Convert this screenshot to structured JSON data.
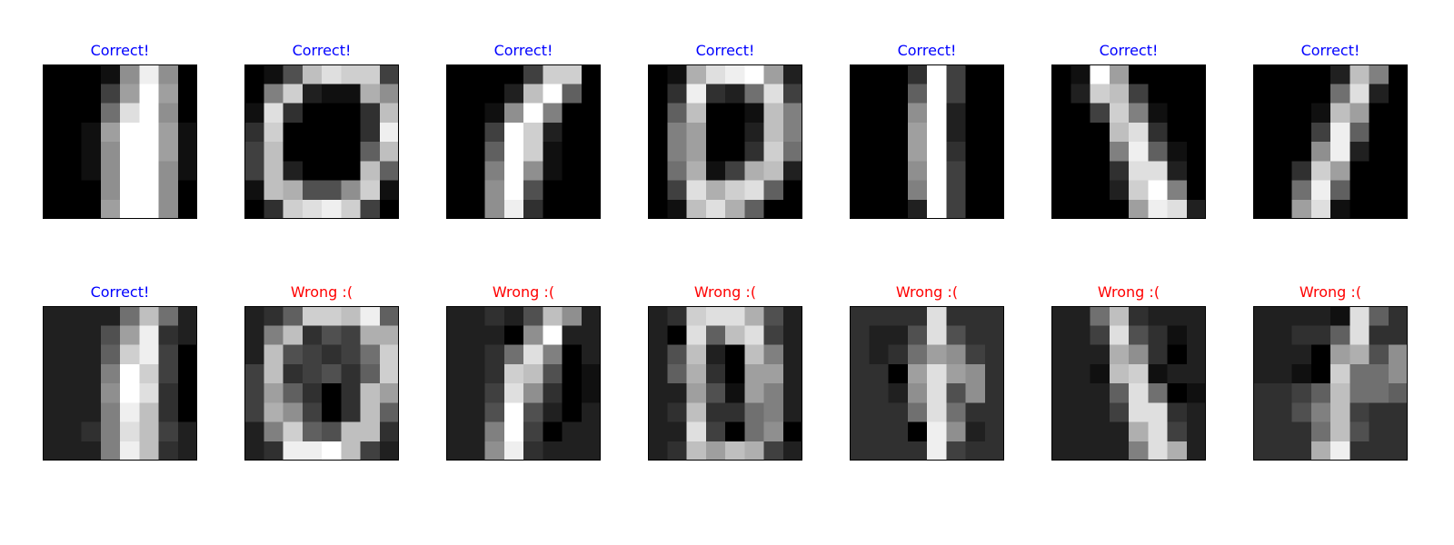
{
  "chart_data": {
    "type": "heatmap",
    "colormap": "gray",
    "grid_rows": 2,
    "grid_cols": 7,
    "image_size": [
      8,
      8
    ],
    "status_colors": {
      "correct": "#0000ff",
      "wrong": "#ff0000"
    },
    "panels": [
      {
        "title": "Correct!",
        "status": "correct",
        "pixels": [
          [
            0,
            0,
            0,
            1,
            9,
            15,
            9,
            0
          ],
          [
            0,
            0,
            0,
            4,
            10,
            16,
            10,
            0
          ],
          [
            0,
            0,
            0,
            7,
            14,
            16,
            9,
            0
          ],
          [
            0,
            0,
            1,
            10,
            16,
            16,
            10,
            1
          ],
          [
            0,
            0,
            1,
            9,
            16,
            16,
            10,
            1
          ],
          [
            0,
            0,
            1,
            9,
            16,
            16,
            9,
            1
          ],
          [
            0,
            0,
            0,
            9,
            16,
            16,
            9,
            0
          ],
          [
            0,
            0,
            0,
            10,
            16,
            16,
            9,
            0
          ]
        ]
      },
      {
        "title": "Correct!",
        "status": "correct",
        "pixels": [
          [
            0,
            1,
            5,
            12,
            14,
            13,
            13,
            4
          ],
          [
            0,
            8,
            13,
            2,
            1,
            1,
            11,
            9
          ],
          [
            1,
            14,
            3,
            0,
            0,
            0,
            3,
            12
          ],
          [
            3,
            13,
            0,
            0,
            0,
            0,
            3,
            15
          ],
          [
            4,
            12,
            0,
            0,
            0,
            0,
            6,
            12
          ],
          [
            4,
            12,
            2,
            0,
            0,
            0,
            12,
            6
          ],
          [
            1,
            12,
            11,
            5,
            5,
            9,
            13,
            1
          ],
          [
            0,
            3,
            13,
            14,
            15,
            13,
            4,
            0
          ]
        ]
      },
      {
        "title": "Correct!",
        "status": "correct",
        "pixels": [
          [
            0,
            0,
            0,
            0,
            4,
            13,
            13,
            0
          ],
          [
            0,
            0,
            0,
            2,
            12,
            16,
            6,
            0
          ],
          [
            0,
            0,
            1,
            9,
            16,
            8,
            0,
            0
          ],
          [
            0,
            0,
            4,
            16,
            13,
            2,
            0,
            0
          ],
          [
            0,
            0,
            6,
            16,
            13,
            1,
            0,
            0
          ],
          [
            0,
            0,
            8,
            16,
            9,
            1,
            0,
            0
          ],
          [
            0,
            0,
            9,
            16,
            5,
            0,
            0,
            0
          ],
          [
            0,
            0,
            9,
            15,
            3,
            0,
            0,
            0
          ]
        ]
      },
      {
        "title": "Correct!",
        "status": "correct",
        "pixels": [
          [
            0,
            1,
            11,
            14,
            15,
            16,
            10,
            2
          ],
          [
            0,
            3,
            15,
            3,
            2,
            7,
            14,
            4
          ],
          [
            0,
            6,
            12,
            0,
            0,
            1,
            12,
            8
          ],
          [
            0,
            8,
            10,
            0,
            0,
            2,
            12,
            8
          ],
          [
            0,
            8,
            10,
            0,
            0,
            3,
            13,
            7
          ],
          [
            0,
            7,
            11,
            1,
            4,
            11,
            12,
            2
          ],
          [
            0,
            4,
            14,
            11,
            13,
            14,
            6,
            0
          ],
          [
            0,
            1,
            12,
            14,
            11,
            6,
            0,
            0
          ]
        ]
      },
      {
        "title": "Correct!",
        "status": "correct",
        "pixels": [
          [
            0,
            0,
            0,
            3,
            16,
            4,
            0,
            0
          ],
          [
            0,
            0,
            0,
            6,
            16,
            4,
            0,
            0
          ],
          [
            0,
            0,
            0,
            9,
            16,
            2,
            0,
            0
          ],
          [
            0,
            0,
            0,
            10,
            16,
            2,
            0,
            0
          ],
          [
            0,
            0,
            0,
            10,
            16,
            3,
            0,
            0
          ],
          [
            0,
            0,
            0,
            9,
            16,
            4,
            0,
            0
          ],
          [
            0,
            0,
            0,
            8,
            16,
            4,
            0,
            0
          ],
          [
            0,
            0,
            0,
            2,
            16,
            4,
            0,
            0
          ]
        ]
      },
      {
        "title": "Correct!",
        "status": "correct",
        "pixels": [
          [
            0,
            1,
            16,
            10,
            0,
            0,
            0,
            0
          ],
          [
            0,
            2,
            13,
            12,
            4,
            0,
            0,
            0
          ],
          [
            0,
            0,
            4,
            13,
            8,
            1,
            0,
            0
          ],
          [
            0,
            0,
            0,
            12,
            14,
            3,
            0,
            0
          ],
          [
            0,
            0,
            0,
            8,
            15,
            6,
            1,
            0
          ],
          [
            0,
            0,
            0,
            3,
            14,
            14,
            2,
            0
          ],
          [
            0,
            0,
            0,
            2,
            13,
            16,
            8,
            0
          ],
          [
            0,
            0,
            0,
            0,
            10,
            15,
            14,
            2
          ]
        ]
      },
      {
        "title": "Correct!",
        "status": "correct",
        "pixels": [
          [
            0,
            0,
            0,
            0,
            2,
            12,
            8,
            0
          ],
          [
            0,
            0,
            0,
            0,
            7,
            14,
            2,
            0
          ],
          [
            0,
            0,
            0,
            1,
            12,
            10,
            0,
            0
          ],
          [
            0,
            0,
            0,
            4,
            15,
            6,
            0,
            0
          ],
          [
            0,
            0,
            0,
            9,
            15,
            2,
            0,
            0
          ],
          [
            0,
            0,
            3,
            13,
            10,
            0,
            0,
            0
          ],
          [
            0,
            0,
            7,
            15,
            6,
            0,
            0,
            0
          ],
          [
            0,
            0,
            10,
            14,
            1,
            0,
            0,
            0
          ]
        ]
      },
      {
        "title": "Correct!",
        "status": "correct",
        "pixels": [
          [
            2,
            2,
            2,
            2,
            7,
            12,
            7,
            2
          ],
          [
            2,
            2,
            2,
            5,
            10,
            15,
            3,
            2
          ],
          [
            2,
            2,
            2,
            6,
            13,
            15,
            4,
            0
          ],
          [
            2,
            2,
            2,
            8,
            16,
            13,
            4,
            0
          ],
          [
            2,
            2,
            2,
            9,
            16,
            14,
            3,
            0
          ],
          [
            2,
            2,
            2,
            8,
            15,
            12,
            3,
            0
          ],
          [
            2,
            2,
            3,
            8,
            14,
            12,
            4,
            2
          ],
          [
            2,
            2,
            2,
            8,
            15,
            12,
            3,
            2
          ]
        ]
      },
      {
        "title": "Wrong :(",
        "status": "wrong",
        "pixels": [
          [
            2,
            3,
            6,
            13,
            13,
            12,
            15,
            6
          ],
          [
            2,
            8,
            12,
            3,
            5,
            4,
            11,
            11
          ],
          [
            2,
            12,
            5,
            4,
            3,
            4,
            7,
            13
          ],
          [
            4,
            12,
            3,
            4,
            5,
            3,
            6,
            13
          ],
          [
            4,
            10,
            6,
            3,
            0,
            3,
            12,
            10
          ],
          [
            4,
            11,
            9,
            4,
            0,
            3,
            12,
            6
          ],
          [
            2,
            8,
            13,
            6,
            5,
            12,
            12,
            3
          ],
          [
            2,
            3,
            15,
            15,
            16,
            12,
            4,
            2
          ]
        ]
      },
      {
        "title": "Wrong :(",
        "status": "wrong",
        "pixels": [
          [
            2,
            2,
            3,
            2,
            5,
            12,
            9,
            2
          ],
          [
            2,
            2,
            2,
            0,
            9,
            16,
            2,
            2
          ],
          [
            2,
            2,
            3,
            7,
            14,
            8,
            0,
            2
          ],
          [
            2,
            2,
            3,
            13,
            12,
            5,
            0,
            1
          ],
          [
            2,
            2,
            4,
            14,
            9,
            3,
            0,
            1
          ],
          [
            2,
            2,
            5,
            16,
            5,
            2,
            0,
            2
          ],
          [
            2,
            2,
            8,
            16,
            4,
            0,
            2,
            2
          ],
          [
            2,
            2,
            9,
            15,
            3,
            2,
            2,
            2
          ]
        ]
      },
      {
        "title": "Wrong :(",
        "status": "wrong",
        "pixels": [
          [
            2,
            3,
            13,
            14,
            14,
            11,
            5,
            2
          ],
          [
            2,
            0,
            14,
            6,
            12,
            14,
            4,
            2
          ],
          [
            2,
            5,
            12,
            2,
            0,
            12,
            8,
            2
          ],
          [
            2,
            6,
            11,
            3,
            0,
            10,
            10,
            2
          ],
          [
            2,
            2,
            10,
            5,
            1,
            10,
            8,
            2
          ],
          [
            2,
            3,
            12,
            3,
            3,
            7,
            8,
            2
          ],
          [
            2,
            2,
            14,
            4,
            0,
            7,
            9,
            0
          ],
          [
            2,
            3,
            12,
            10,
            12,
            11,
            4,
            2
          ]
        ]
      },
      {
        "title": "Wrong :(",
        "status": "wrong",
        "pixels": [
          [
            3,
            3,
            3,
            3,
            14,
            3,
            3,
            3
          ],
          [
            3,
            2,
            2,
            5,
            14,
            5,
            3,
            3
          ],
          [
            3,
            2,
            3,
            7,
            10,
            9,
            4,
            3
          ],
          [
            3,
            3,
            0,
            10,
            14,
            10,
            9,
            3
          ],
          [
            3,
            3,
            2,
            9,
            14,
            5,
            9,
            3
          ],
          [
            3,
            3,
            3,
            7,
            14,
            7,
            3,
            3
          ],
          [
            3,
            3,
            3,
            0,
            15,
            9,
            2,
            3
          ],
          [
            3,
            3,
            3,
            3,
            15,
            4,
            3,
            3
          ]
        ]
      },
      {
        "title": "Wrong :(",
        "status": "wrong",
        "pixels": [
          [
            2,
            2,
            7,
            12,
            3,
            2,
            2,
            2
          ],
          [
            2,
            2,
            4,
            14,
            5,
            3,
            1,
            2
          ],
          [
            2,
            2,
            2,
            11,
            9,
            3,
            0,
            2
          ],
          [
            2,
            2,
            1,
            12,
            13,
            1,
            2,
            2
          ],
          [
            2,
            2,
            2,
            6,
            14,
            7,
            0,
            1
          ],
          [
            2,
            2,
            2,
            4,
            14,
            14,
            3,
            2
          ],
          [
            2,
            2,
            2,
            2,
            11,
            14,
            4,
            2
          ],
          [
            2,
            2,
            2,
            2,
            8,
            14,
            11,
            2
          ]
        ]
      },
      {
        "title": "Wrong :(",
        "status": "wrong",
        "pixels": [
          [
            2,
            2,
            2,
            2,
            1,
            14,
            6,
            3
          ],
          [
            2,
            2,
            3,
            3,
            6,
            14,
            3,
            3
          ],
          [
            2,
            2,
            2,
            0,
            10,
            11,
            5,
            9
          ],
          [
            2,
            2,
            1,
            0,
            13,
            7,
            7,
            9
          ],
          [
            3,
            3,
            4,
            6,
            12,
            7,
            7,
            6
          ],
          [
            3,
            3,
            5,
            8,
            12,
            4,
            3,
            3
          ],
          [
            3,
            3,
            3,
            7,
            12,
            5,
            3,
            3
          ],
          [
            3,
            3,
            3,
            11,
            15,
            3,
            3,
            3
          ]
        ]
      }
    ]
  }
}
